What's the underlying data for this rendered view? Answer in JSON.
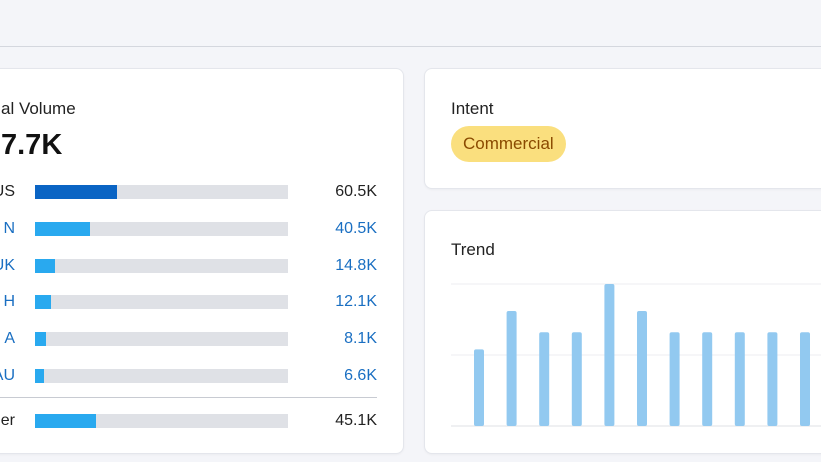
{
  "volume_card": {
    "title": "al Volume",
    "total": "7.7K",
    "rows": [
      {
        "label": "US",
        "value": 60.5,
        "value_label": "60.5K",
        "link": false
      },
      {
        "label": "N",
        "value": 40.5,
        "value_label": "40.5K",
        "link": true
      },
      {
        "label": "UK",
        "value": 14.8,
        "value_label": "14.8K",
        "link": true
      },
      {
        "label": "H",
        "value": 12.1,
        "value_label": "12.1K",
        "link": true
      },
      {
        "label": "A",
        "value": 8.1,
        "value_label": "8.1K",
        "link": true
      },
      {
        "label": "AU",
        "value": 6.6,
        "value_label": "6.6K",
        "link": true
      }
    ],
    "other": {
      "label": "er",
      "value": 45.1,
      "value_label": "45.1K"
    }
  },
  "intent_card": {
    "title": "Intent",
    "badge": "Commercial"
  },
  "trend_card": {
    "title": "Trend",
    "values": [
      0.54,
      0.81,
      0.66,
      0.66,
      1.0,
      0.81,
      0.66,
      0.66,
      0.66,
      0.66,
      0.66
    ],
    "ylim": [
      0,
      1
    ]
  }
}
